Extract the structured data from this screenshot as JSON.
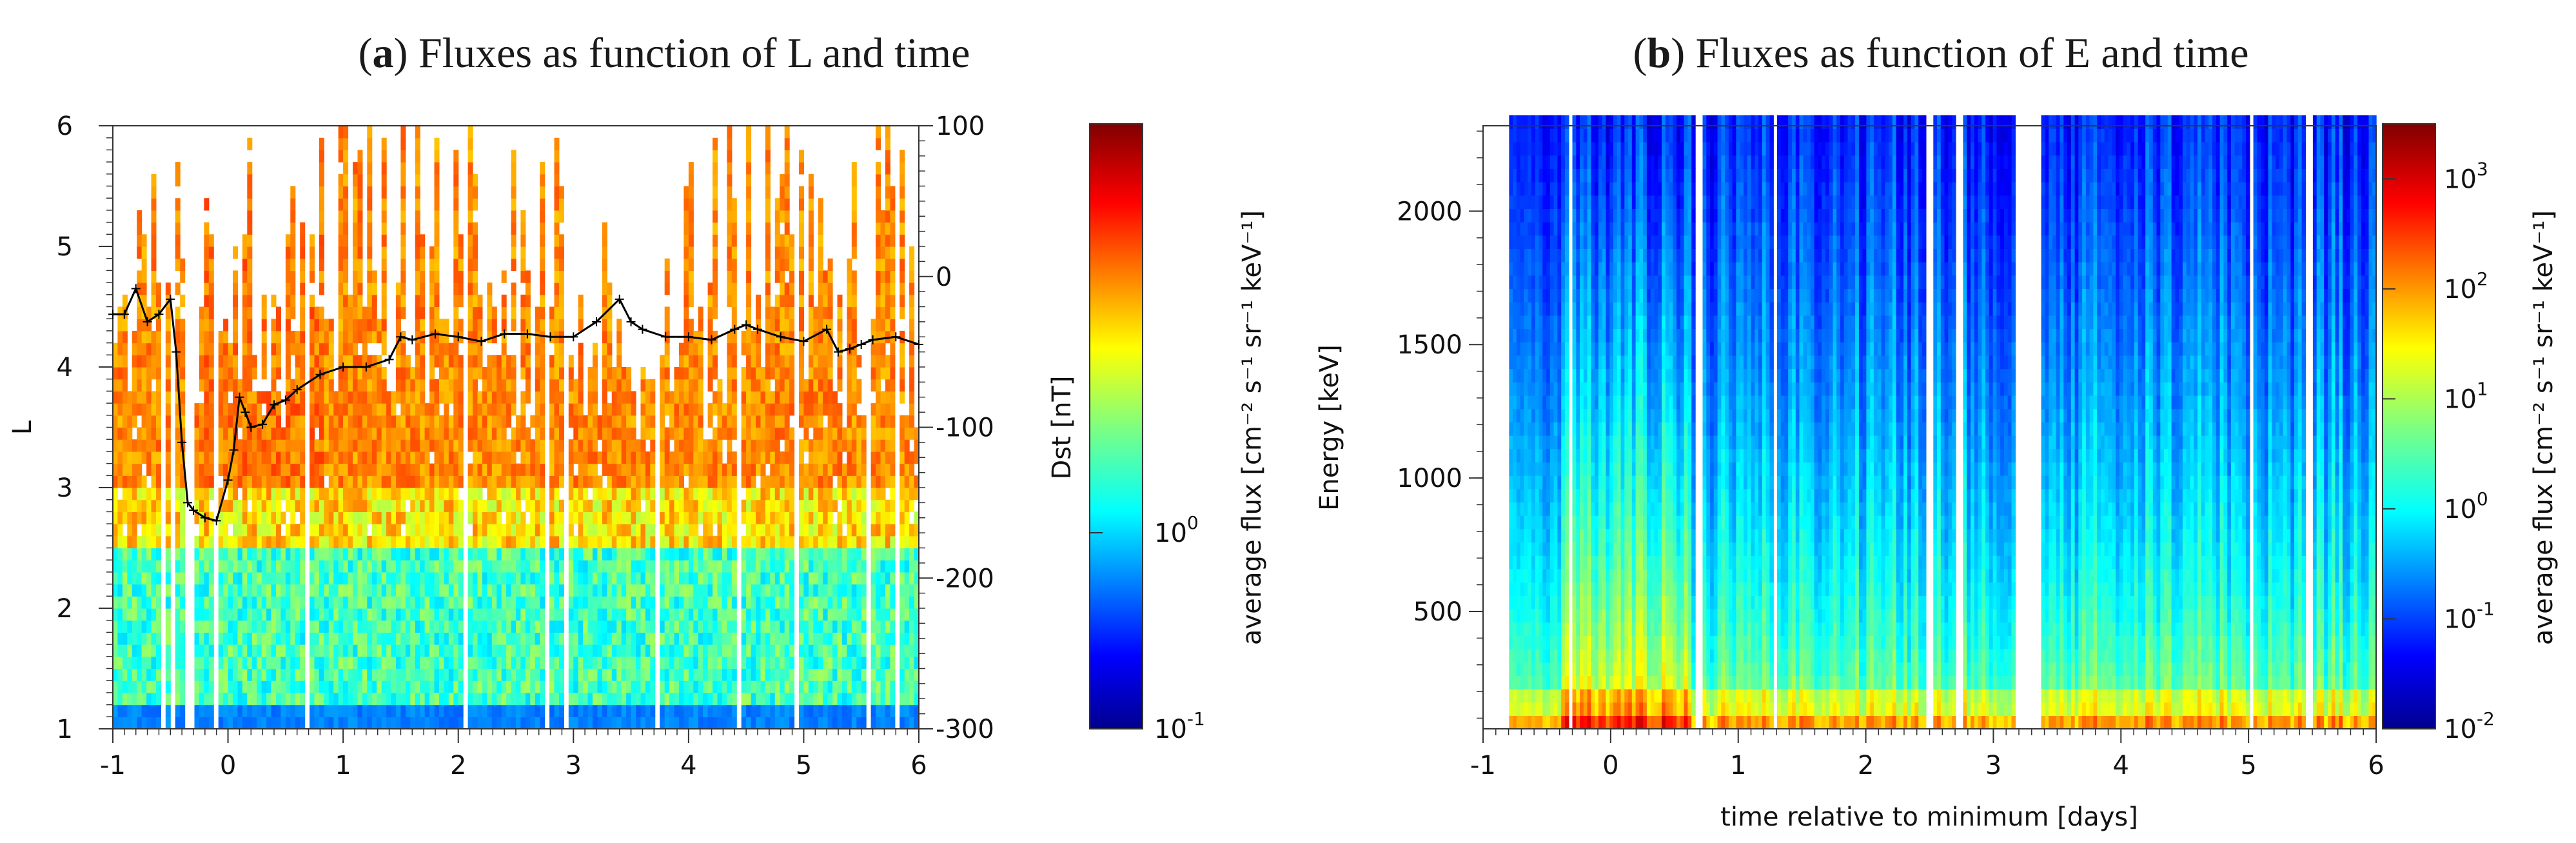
{
  "chart_data": [
    {
      "type": "heatmap",
      "panel_letter": "a",
      "title": "Fluxes as function of L and time",
      "xlabel": "",
      "ylabel": "L",
      "y2label": "Dst [nT]",
      "colorbar_label": "average flux [cm⁻² s⁻¹ sr⁻¹ keV⁻¹]",
      "colorbar_ticks": [
        {
          "exp": "0"
        },
        {
          "exp": "-1"
        }
      ],
      "xlim": [
        -1,
        6
      ],
      "ylim": [
        1,
        6
      ],
      "y2lim": [
        -300,
        100
      ],
      "x_ticks": [
        "-1",
        "0",
        "1",
        "2",
        "3",
        "4",
        "5",
        "6"
      ],
      "y_ticks": [
        "1",
        "2",
        "3",
        "4",
        "5",
        "6"
      ],
      "y2_ticks": [
        "-300",
        "-200",
        "-100",
        "0",
        "100"
      ],
      "dst_series": {
        "name": "Dst",
        "t": [
          -1.0,
          -0.9,
          -0.8,
          -0.7,
          -0.6,
          -0.5,
          -0.45,
          -0.4,
          -0.35,
          -0.3,
          -0.2,
          -0.1,
          0.0,
          0.05,
          0.1,
          0.15,
          0.2,
          0.3,
          0.4,
          0.5,
          0.6,
          0.8,
          1.0,
          1.2,
          1.4,
          1.5,
          1.6,
          1.8,
          2.0,
          2.2,
          2.4,
          2.6,
          2.8,
          3.0,
          3.2,
          3.4,
          3.5,
          3.6,
          3.8,
          4.0,
          4.2,
          4.4,
          4.5,
          4.6,
          4.8,
          5.0,
          5.2,
          5.3,
          5.4,
          5.5,
          5.6,
          5.8,
          6.0
        ],
        "dst": [
          -25,
          -25,
          -8,
          -30,
          -25,
          -15,
          -50,
          -110,
          -150,
          -155,
          -160,
          -162,
          -135,
          -115,
          -80,
          -90,
          -100,
          -98,
          -85,
          -82,
          -75,
          -65,
          -60,
          -60,
          -55,
          -40,
          -42,
          -38,
          -40,
          -43,
          -38,
          -38,
          -40,
          -40,
          -30,
          -15,
          -30,
          -35,
          -40,
          -40,
          -42,
          -35,
          -32,
          -35,
          -40,
          -43,
          -35,
          -50,
          -48,
          -45,
          -42,
          -40,
          -45
        ]
      }
    },
    {
      "type": "heatmap",
      "panel_letter": "b",
      "title": "Fluxes as function of E and time",
      "xlabel": "time relative to minimum [days]",
      "ylabel": "Energy [keV]",
      "colorbar_label": "average flux [cm⁻² s⁻¹ sr⁻¹ keV⁻¹]",
      "colorbar_ticks": [
        {
          "exp": "3"
        },
        {
          "exp": "2"
        },
        {
          "exp": "1"
        },
        {
          "exp": "0"
        },
        {
          "exp": "-1"
        },
        {
          "exp": "-2"
        }
      ],
      "xlim": [
        -1,
        6
      ],
      "ylim": [
        60,
        2320
      ],
      "x_ticks": [
        "-1",
        "0",
        "1",
        "2",
        "3",
        "4",
        "5",
        "6"
      ],
      "y_ticks": [
        "500",
        "1000",
        "1500",
        "2000"
      ]
    }
  ]
}
